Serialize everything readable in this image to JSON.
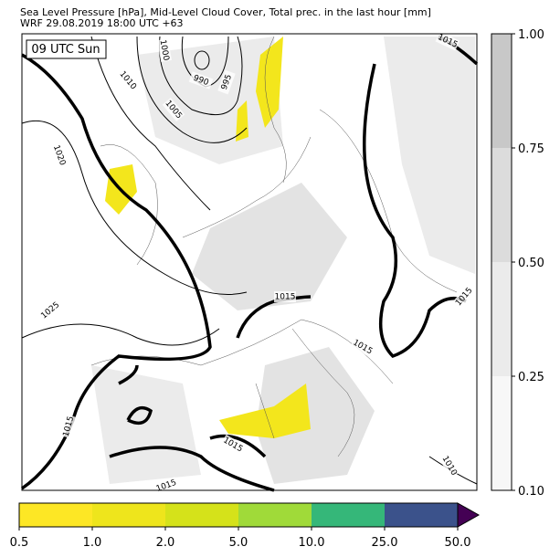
{
  "header": {
    "title": "Sea Level Pressure [hPa], Mid-Level Cloud Cover, Total prec. in the last hour [mm]",
    "subtitle": "WRF 29.08.2019 18:00 UTC +63"
  },
  "map": {
    "time_label": "09 UTC Sun",
    "isobar_labels": [
      "1000",
      "990",
      "995",
      "1010",
      "1005",
      "1020",
      "1025",
      "1015",
      "1015",
      "1015",
      "1015",
      "1015",
      "1015",
      "1015",
      "1010"
    ]
  },
  "cloud_colorbar": {
    "ticks": [
      "0.10",
      "0.25",
      "0.50",
      "0.75",
      "1.00"
    ],
    "colors": [
      "#f7f7f7",
      "#ebebeb",
      "#dcdcdc",
      "#c8c8c8"
    ]
  },
  "precip_colorbar": {
    "ticks": [
      "0.5",
      "1.0",
      "2.0",
      "5.0",
      "10.0",
      "25.0",
      "50.0"
    ],
    "colors": [
      "#fde725",
      "#eee51c",
      "#d5e21a",
      "#a0da39",
      "#35b779",
      "#3b528b"
    ],
    "extend_color": "#440154"
  }
}
